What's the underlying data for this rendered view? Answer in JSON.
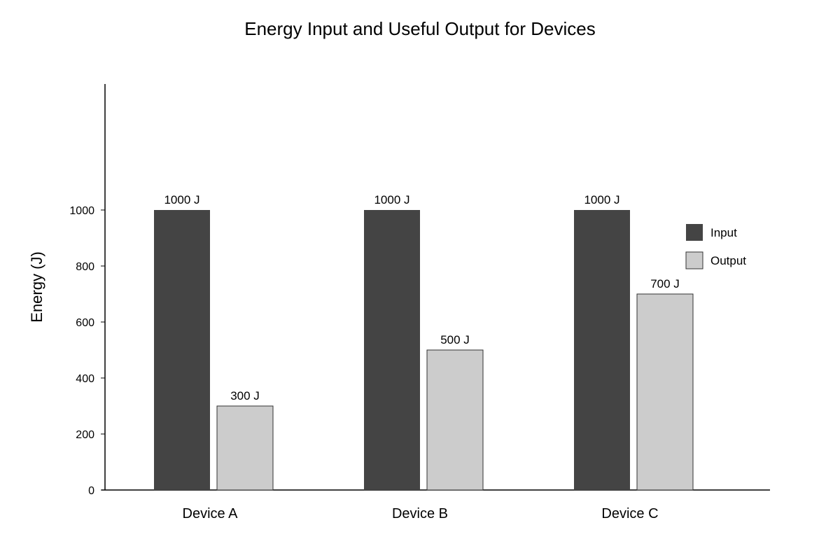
{
  "chart_data": {
    "type": "bar",
    "title": "Energy Input and Useful Output for Devices",
    "ylabel": "Energy (J)",
    "xlabel": "",
    "categories": [
      "Device A",
      "Device B",
      "Device C"
    ],
    "series": [
      {
        "name": "Input",
        "values": [
          1000,
          1000,
          1000
        ],
        "labels": [
          "1000 J",
          "1000 J",
          "1000 J"
        ],
        "color": "#444444"
      },
      {
        "name": "Output",
        "values": [
          300,
          500,
          700
        ],
        "labels": [
          "300 J",
          "500 J",
          "700 J"
        ],
        "color": "#cccccc"
      }
    ],
    "yticks": [
      0,
      200,
      400,
      600,
      800,
      1000
    ],
    "ytick_labels": [
      "0",
      "200",
      "400",
      "600",
      "800",
      "1000"
    ],
    "ylim": [
      0,
      1450
    ],
    "grid": false,
    "legend_position": "right"
  }
}
